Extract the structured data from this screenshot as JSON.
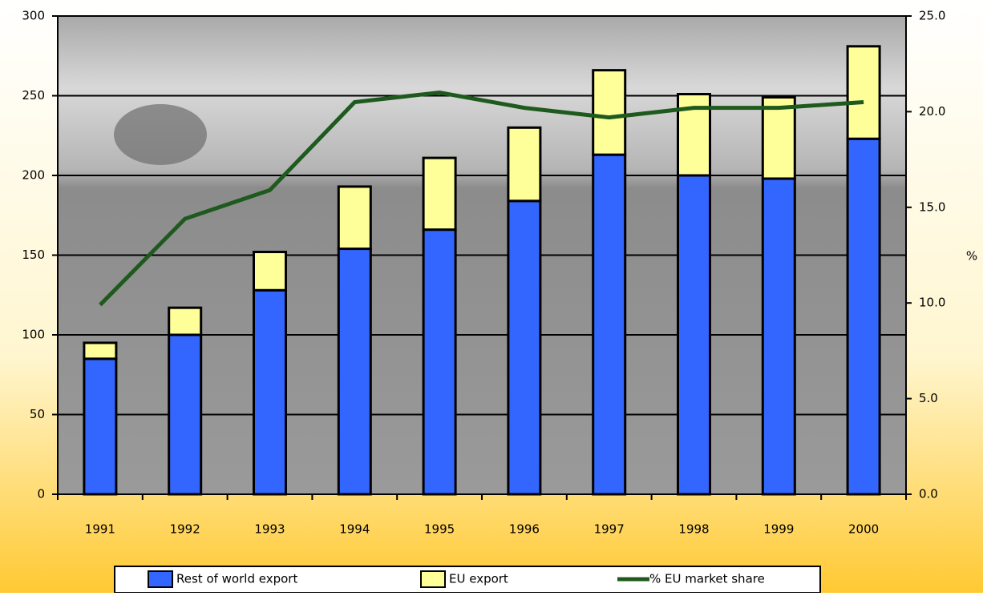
{
  "chart_data": {
    "type": "bar",
    "categories": [
      "1991",
      "1992",
      "1993",
      "1994",
      "1995",
      "1996",
      "1997",
      "1998",
      "1999",
      "2000"
    ],
    "series": [
      {
        "name": "Rest of world export",
        "color": "#3366ff",
        "values": [
          85,
          100,
          128,
          154,
          166,
          184,
          213,
          200,
          198,
          223
        ]
      },
      {
        "name": "EU export",
        "color": "#ffff99",
        "values": [
          10,
          17,
          24,
          39,
          45,
          46,
          53,
          51,
          51,
          58
        ]
      },
      {
        "name": "% EU market share",
        "color": "#1e5a1e",
        "type": "line",
        "axis": "y2",
        "values": [
          9.9,
          14.4,
          15.9,
          20.5,
          21.0,
          20.2,
          19.7,
          20.2,
          20.2,
          20.5
        ]
      }
    ],
    "stacked": true,
    "ylim": [
      0,
      300
    ],
    "yticks": [
      0,
      50,
      100,
      150,
      200,
      250,
      300
    ],
    "y2lim": [
      0,
      25
    ],
    "y2ticks": [
      {
        "value": 0,
        "label": "0.0"
      },
      {
        "value": 5,
        "label": "5.0"
      },
      {
        "value": 10,
        "label": "10.0"
      },
      {
        "value": 15,
        "label": "15.0"
      },
      {
        "value": 20,
        "label": "20.0"
      },
      {
        "value": 25,
        "label": "25.0"
      }
    ],
    "y2label": "%",
    "grid": true,
    "legend": "bottom"
  }
}
